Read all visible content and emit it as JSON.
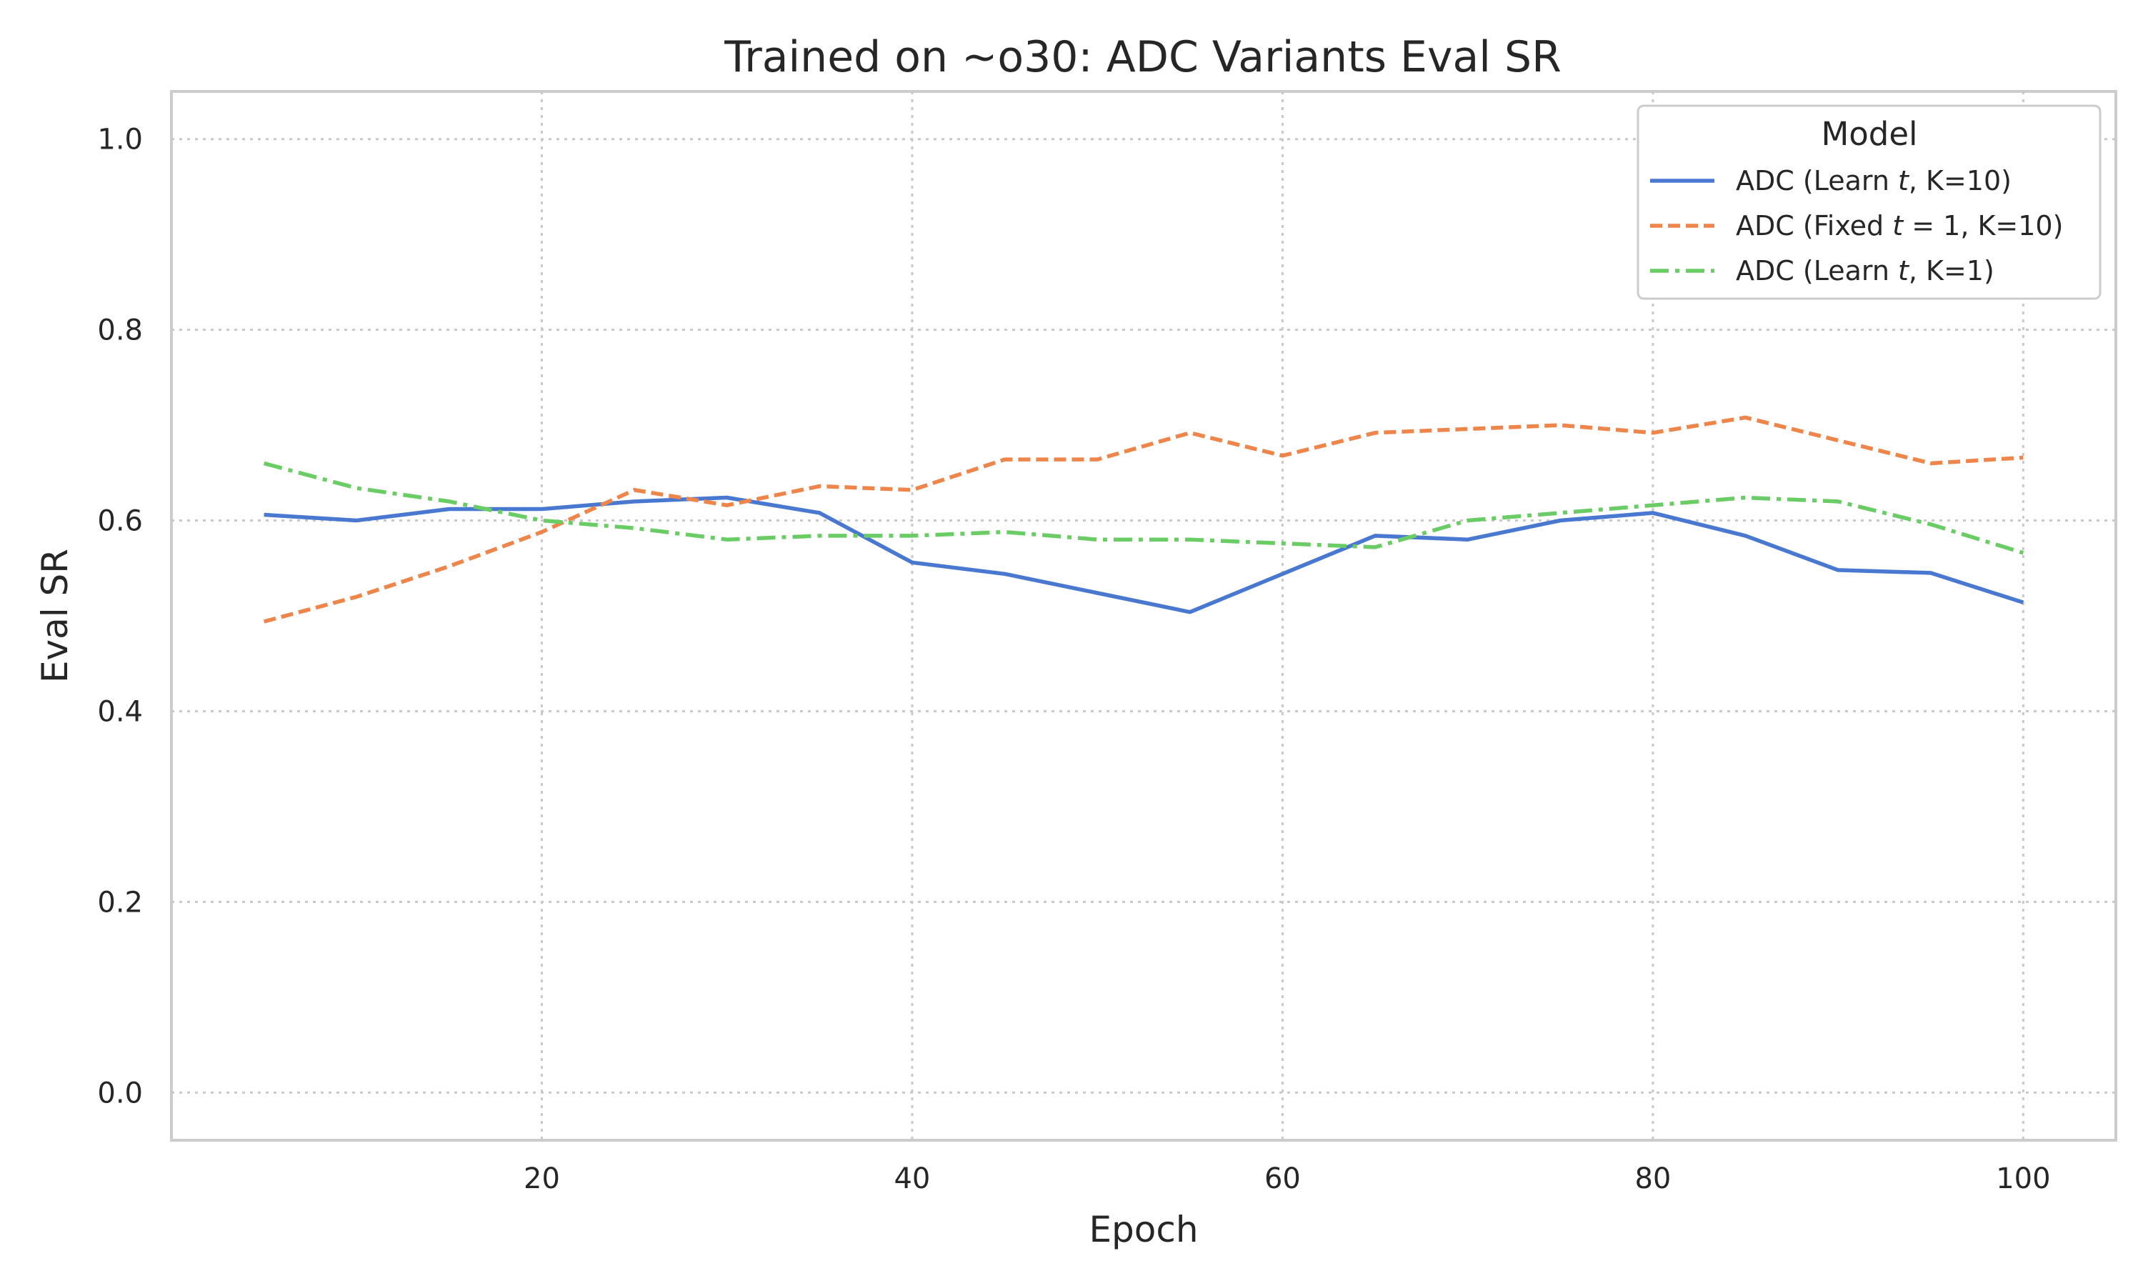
{
  "chart_data": {
    "type": "line",
    "title": "Trained on ~o30: ADC Variants Eval SR",
    "xlabel": "Epoch",
    "ylabel": "Eval SR",
    "xlim": [
      0,
      105
    ],
    "ylim": [
      -0.05,
      1.05
    ],
    "xticks": [
      20,
      40,
      60,
      80,
      100
    ],
    "yticks": [
      0.0,
      0.2,
      0.4,
      0.6,
      0.8,
      1.0
    ],
    "xtick_labels": [
      "20",
      "40",
      "60",
      "80",
      "100"
    ],
    "ytick_labels": [
      "0.0",
      "0.2",
      "0.4",
      "0.6",
      "0.8",
      "1.0"
    ],
    "grid": true,
    "legend": {
      "title": "Model",
      "placement": "top-right"
    },
    "x": [
      5,
      10,
      15,
      20,
      25,
      30,
      35,
      40,
      45,
      50,
      55,
      60,
      65,
      70,
      75,
      80,
      85,
      90,
      95,
      100
    ],
    "series": [
      {
        "name": "ADC (Learn t, K=10)",
        "label_parts": [
          "ADC (Learn ",
          "t",
          ", K=10)"
        ],
        "color": "#4878d0",
        "dash": "solid",
        "values": [
          0.606,
          0.6,
          0.612,
          0.612,
          0.62,
          0.624,
          0.608,
          0.556,
          0.544,
          0.524,
          0.504,
          0.544,
          0.584,
          0.58,
          0.6,
          0.608,
          0.584,
          0.548,
          0.545,
          0.514
        ]
      },
      {
        "name": "ADC (Fixed t = 1, K=10)",
        "label_parts": [
          "ADC (Fixed ",
          "t",
          " = 1, K=10)"
        ],
        "color": "#ee854a",
        "dash": "dashed",
        "values": [
          0.494,
          0.52,
          0.552,
          0.588,
          0.632,
          0.616,
          0.636,
          0.632,
          0.664,
          0.664,
          0.692,
          0.668,
          0.692,
          0.696,
          0.7,
          0.692,
          0.708,
          0.684,
          0.66,
          0.666
        ]
      },
      {
        "name": "ADC (Learn t, K=1)",
        "label_parts": [
          "ADC (Learn ",
          "t",
          ", K=1)"
        ],
        "color": "#6acc64",
        "dash": "dashdot",
        "values": [
          0.66,
          0.634,
          0.62,
          0.6,
          0.592,
          0.58,
          0.584,
          0.584,
          0.588,
          0.58,
          0.58,
          0.576,
          0.572,
          0.6,
          0.608,
          0.616,
          0.624,
          0.62,
          0.596,
          0.566
        ]
      }
    ]
  }
}
